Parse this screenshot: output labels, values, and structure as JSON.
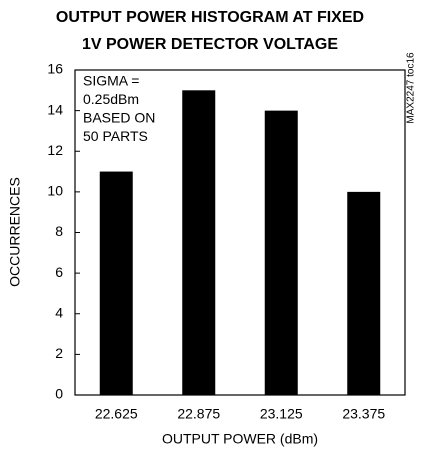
{
  "chart_data": {
    "type": "bar",
    "title": [
      "OUTPUT POWER HISTOGRAM AT FIXED",
      "1V POWER DETECTOR VOLTAGE"
    ],
    "x_label": "OUTPUT POWER (dBm)",
    "y_label": "OCCURRENCES",
    "annotation": [
      "SIGMA =",
      "0.25dBm",
      "BASED ON",
      "50 PARTS"
    ],
    "side_label": "MAX2247 toc16",
    "categories": [
      "22.625",
      "22.875",
      "23.125",
      "23.375"
    ],
    "values": [
      11,
      15,
      14,
      10
    ],
    "color": "#000000",
    "ylim": [
      0,
      16
    ],
    "yticks": [
      0,
      2,
      4,
      6,
      8,
      10,
      12,
      14,
      16
    ],
    "grid": false
  }
}
